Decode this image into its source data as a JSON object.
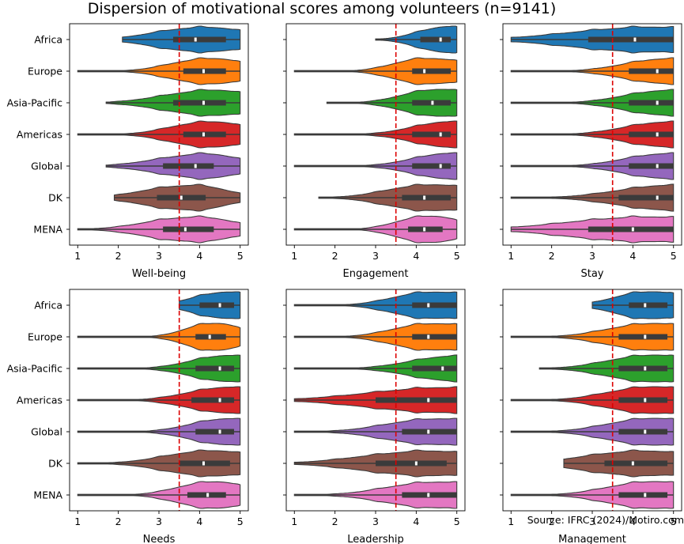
{
  "figure": {
    "title": "Dispersion of motivational scores among volunteers (n=9141)",
    "source": "Source: IFRC (2024)/Motiro.com"
  },
  "colors": {
    "Africa": "#1f77b4",
    "Europe": "#ff7f0e",
    "Asia-Pacific": "#2ca02c",
    "Americas": "#d62728",
    "Global": "#9467bd",
    "DK": "#8c564b",
    "MENA": "#e377c2",
    "reference_line": "#dd0000",
    "box": "#3b3b3b"
  },
  "chart_data": [
    {
      "type": "violin",
      "xlabel": "Well-being",
      "xlim": [
        0.8,
        5.2
      ],
      "xticks": [
        1,
        2,
        3,
        4,
        5
      ],
      "reference_line": 3.5,
      "categories": [
        "Africa",
        "Europe",
        "Asia-Pacific",
        "Americas",
        "Global",
        "DK",
        "MENA"
      ],
      "series": [
        {
          "name": "Africa",
          "min": 2.1,
          "q1": 3.35,
          "median": 3.9,
          "q3": 4.65,
          "max": 5.0
        },
        {
          "name": "Europe",
          "min": 1.0,
          "q1": 3.6,
          "median": 4.1,
          "q3": 4.65,
          "max": 5.0
        },
        {
          "name": "Asia-Pacific",
          "min": 1.7,
          "q1": 3.35,
          "median": 4.1,
          "q3": 4.65,
          "max": 5.0
        },
        {
          "name": "Americas",
          "min": 1.0,
          "q1": 3.6,
          "median": 4.1,
          "q3": 4.65,
          "max": 5.0
        },
        {
          "name": "Global",
          "min": 1.7,
          "q1": 3.1,
          "median": 3.9,
          "q3": 4.35,
          "max": 5.0
        },
        {
          "name": "DK",
          "min": 1.9,
          "q1": 2.95,
          "median": 3.55,
          "q3": 4.15,
          "max": 5.0
        },
        {
          "name": "MENA",
          "min": 1.0,
          "q1": 3.1,
          "median": 3.65,
          "q3": 4.35,
          "max": 5.0
        }
      ]
    },
    {
      "type": "violin",
      "xlabel": "Engagement",
      "xlim": [
        0.8,
        5.2
      ],
      "xticks": [
        1,
        2,
        3,
        4,
        5
      ],
      "reference_line": 3.5,
      "categories": [
        "Africa",
        "Europe",
        "Asia-Pacific",
        "Americas",
        "Global",
        "DK",
        "MENA"
      ],
      "series": [
        {
          "name": "Africa",
          "min": 3.0,
          "q1": 4.1,
          "median": 4.6,
          "q3": 4.85,
          "max": 5.0
        },
        {
          "name": "Europe",
          "min": 1.0,
          "q1": 3.9,
          "median": 4.2,
          "q3": 4.85,
          "max": 5.0
        },
        {
          "name": "Asia-Pacific",
          "min": 1.8,
          "q1": 3.9,
          "median": 4.4,
          "q3": 4.85,
          "max": 5.0
        },
        {
          "name": "Americas",
          "min": 1.0,
          "q1": 3.9,
          "median": 4.6,
          "q3": 4.85,
          "max": 5.0
        },
        {
          "name": "Global",
          "min": 1.0,
          "q1": 3.9,
          "median": 4.6,
          "q3": 4.85,
          "max": 5.0
        },
        {
          "name": "DK",
          "min": 1.6,
          "q1": 3.65,
          "median": 4.2,
          "q3": 4.85,
          "max": 5.0
        },
        {
          "name": "MENA",
          "min": 1.0,
          "q1": 3.8,
          "median": 4.2,
          "q3": 4.65,
          "max": 5.0
        }
      ]
    },
    {
      "type": "violin",
      "xlabel": "Stay",
      "xlim": [
        0.8,
        5.2
      ],
      "xticks": [
        1,
        2,
        3,
        4,
        5
      ],
      "reference_line": 3.5,
      "categories": [
        "Africa",
        "Europe",
        "Asia-Pacific",
        "Americas",
        "Global",
        "DK",
        "MENA"
      ],
      "series": [
        {
          "name": "Africa",
          "min": 1.0,
          "q1": 2.9,
          "median": 4.05,
          "q3": 5.0,
          "max": 5.0
        },
        {
          "name": "Europe",
          "min": 1.0,
          "q1": 3.9,
          "median": 4.6,
          "q3": 5.0,
          "max": 5.0
        },
        {
          "name": "Asia-Pacific",
          "min": 1.0,
          "q1": 3.9,
          "median": 4.6,
          "q3": 5.0,
          "max": 5.0
        },
        {
          "name": "Americas",
          "min": 1.0,
          "q1": 3.9,
          "median": 4.6,
          "q3": 5.0,
          "max": 5.0
        },
        {
          "name": "Global",
          "min": 1.0,
          "q1": 3.9,
          "median": 4.6,
          "q3": 5.0,
          "max": 5.0
        },
        {
          "name": "DK",
          "min": 1.0,
          "q1": 3.65,
          "median": 4.6,
          "q3": 5.0,
          "max": 5.0
        },
        {
          "name": "MENA",
          "min": 1.0,
          "q1": 2.9,
          "median": 4.0,
          "q3": 5.0,
          "max": 5.0
        }
      ]
    },
    {
      "type": "violin",
      "xlabel": "Needs",
      "xlim": [
        0.8,
        5.2
      ],
      "xticks": [
        1,
        2,
        3,
        4,
        5
      ],
      "reference_line": 3.5,
      "categories": [
        "Africa",
        "Europe",
        "Asia-Pacific",
        "Americas",
        "Global",
        "DK",
        "MENA"
      ],
      "series": [
        {
          "name": "Africa",
          "min": 3.5,
          "q1": 4.0,
          "median": 4.5,
          "q3": 4.85,
          "max": 5.0
        },
        {
          "name": "Europe",
          "min": 1.0,
          "q1": 3.9,
          "median": 4.25,
          "q3": 4.65,
          "max": 5.0
        },
        {
          "name": "Asia-Pacific",
          "min": 1.0,
          "q1": 3.9,
          "median": 4.5,
          "q3": 4.85,
          "max": 5.0
        },
        {
          "name": "Americas",
          "min": 1.0,
          "q1": 3.8,
          "median": 4.5,
          "q3": 4.85,
          "max": 5.0
        },
        {
          "name": "Global",
          "min": 1.0,
          "q1": 3.9,
          "median": 4.5,
          "q3": 4.85,
          "max": 5.0
        },
        {
          "name": "DK",
          "min": 1.0,
          "q1": 3.5,
          "median": 4.1,
          "q3": 4.75,
          "max": 5.0
        },
        {
          "name": "MENA",
          "min": 1.0,
          "q1": 3.7,
          "median": 4.2,
          "q3": 4.65,
          "max": 5.0
        }
      ]
    },
    {
      "type": "violin",
      "xlabel": "Leadership",
      "xlim": [
        0.8,
        5.2
      ],
      "xticks": [
        1,
        2,
        3,
        4,
        5
      ],
      "reference_line": 3.5,
      "categories": [
        "Africa",
        "Europe",
        "Asia-Pacific",
        "Americas",
        "Global",
        "DK",
        "MENA"
      ],
      "series": [
        {
          "name": "Africa",
          "min": 1.0,
          "q1": 3.9,
          "median": 4.3,
          "q3": 5.0,
          "max": 5.0
        },
        {
          "name": "Europe",
          "min": 1.0,
          "q1": 3.9,
          "median": 4.3,
          "q3": 5.0,
          "max": 5.0
        },
        {
          "name": "Asia-Pacific",
          "min": 1.0,
          "q1": 3.9,
          "median": 4.65,
          "q3": 5.0,
          "max": 5.0
        },
        {
          "name": "Americas",
          "min": 1.0,
          "q1": 3.0,
          "median": 4.3,
          "q3": 5.0,
          "max": 5.0
        },
        {
          "name": "Global",
          "min": 1.0,
          "q1": 3.65,
          "median": 4.3,
          "q3": 5.0,
          "max": 5.0
        },
        {
          "name": "DK",
          "min": 1.0,
          "q1": 3.0,
          "median": 4.0,
          "q3": 4.75,
          "max": 5.0
        },
        {
          "name": "MENA",
          "min": 1.0,
          "q1": 3.65,
          "median": 4.3,
          "q3": 5.0,
          "max": 5.0
        }
      ]
    },
    {
      "type": "violin",
      "xlabel": "Management",
      "xlim": [
        0.8,
        5.2
      ],
      "xticks": [
        1,
        2,
        3,
        4,
        5
      ],
      "reference_line": 3.5,
      "categories": [
        "Africa",
        "Europe",
        "Asia-Pacific",
        "Americas",
        "Global",
        "DK",
        "MENA"
      ],
      "series": [
        {
          "name": "Africa",
          "min": 3.0,
          "q1": 3.9,
          "median": 4.3,
          "q3": 4.85,
          "max": 5.0
        },
        {
          "name": "Europe",
          "min": 1.0,
          "q1": 3.65,
          "median": 4.3,
          "q3": 4.85,
          "max": 5.0
        },
        {
          "name": "Asia-Pacific",
          "min": 1.7,
          "q1": 3.65,
          "median": 4.3,
          "q3": 4.85,
          "max": 5.0
        },
        {
          "name": "Americas",
          "min": 1.0,
          "q1": 3.65,
          "median": 4.3,
          "q3": 4.85,
          "max": 5.0
        },
        {
          "name": "Global",
          "min": 1.0,
          "q1": 3.65,
          "median": 4.3,
          "q3": 4.85,
          "max": 5.0
        },
        {
          "name": "DK",
          "min": 2.3,
          "q1": 3.3,
          "median": 4.0,
          "q3": 4.85,
          "max": 5.0
        },
        {
          "name": "MENA",
          "min": 1.0,
          "q1": 3.65,
          "median": 4.3,
          "q3": 4.85,
          "max": 5.0
        }
      ]
    }
  ]
}
